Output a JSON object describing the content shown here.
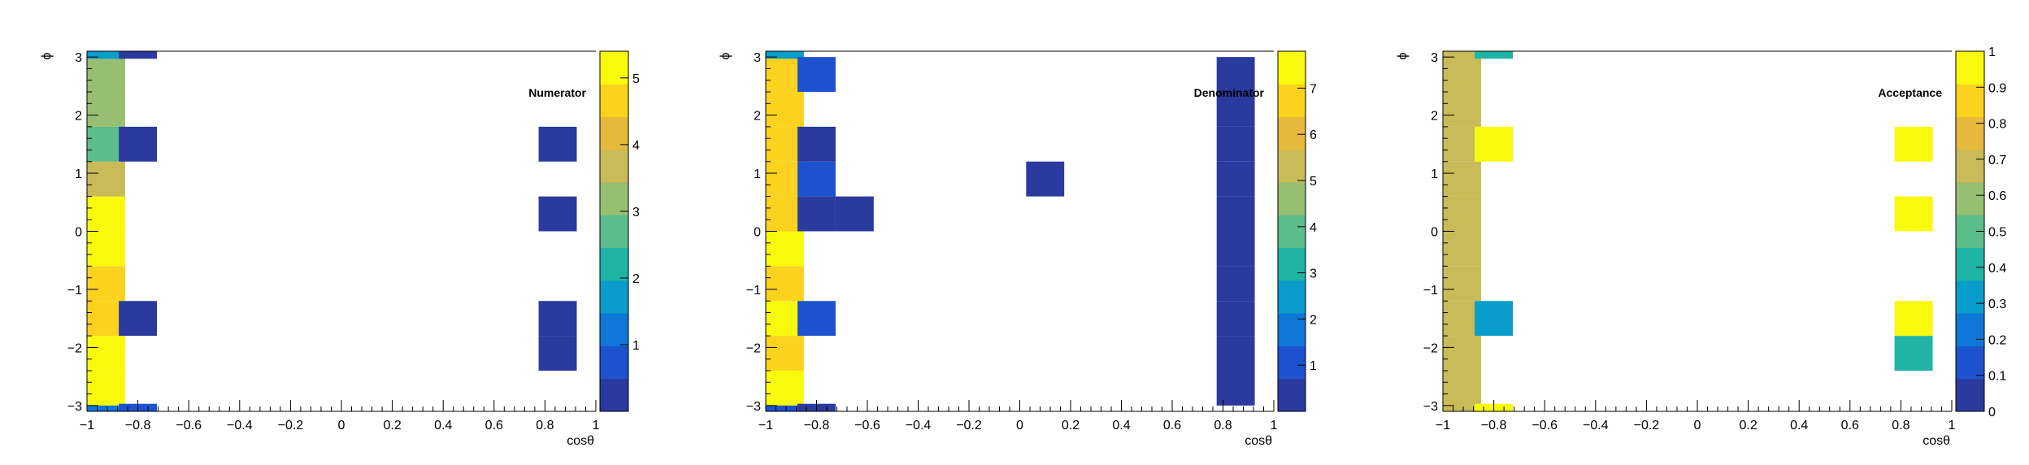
{
  "palette": [
    "#2a3a9e",
    "#1d52cf",
    "#0e77d8",
    "#0a9cca",
    "#1fb4a6",
    "#5cbd8c",
    "#96bf72",
    "#c8bb58",
    "#e6b83c",
    "#fbd21d",
    "#f9f90e"
  ],
  "chart_data": [
    {
      "type": "heatmap",
      "title": "Numerator",
      "xlabel": "cosθ",
      "ylabel": "ϕ",
      "xlim": [
        -1,
        1
      ],
      "ylim": [
        -3.1,
        3.1
      ],
      "xticks": [
        "−1",
        "−0.8",
        "−0.6",
        "−0.4",
        "−0.2",
        "0",
        "0.2",
        "0.4",
        "0.6",
        "0.8",
        "1"
      ],
      "yticks": [
        "−3",
        "−2",
        "−1",
        "0",
        "1",
        "2",
        "3"
      ],
      "zlim": [
        0,
        5.4
      ],
      "zticks": [
        "1",
        "2",
        "3",
        "4",
        "5"
      ],
      "bin_width_x": 0.15,
      "bin_width_y": 0.6,
      "x_bin_edges": [
        -1,
        -0.85,
        -0.7,
        -0.55,
        -0.4,
        -0.25,
        -0.1,
        0.05,
        0.2,
        0.35,
        0.5,
        0.65,
        0.8,
        0.95
      ],
      "y_bin_edges": [
        -3.1,
        -2.5,
        -1.9,
        -1.3,
        -0.7,
        -0.1,
        0.5,
        1.1,
        1.7,
        2.3,
        2.9,
        3.5
      ],
      "cells": [
        {
          "x": -0.925,
          "y": -3.06,
          "z": 1.0
        },
        {
          "x": -0.925,
          "y": -2.7,
          "z": 5.4
        },
        {
          "x": -0.925,
          "y": -2.1,
          "z": 5.0
        },
        {
          "x": -0.925,
          "y": -1.5,
          "z": 4.6
        },
        {
          "x": -0.925,
          "y": -0.9,
          "z": 4.6
        },
        {
          "x": -0.925,
          "y": -0.3,
          "z": 5.2
        },
        {
          "x": -0.925,
          "y": 0.3,
          "z": 5.0
        },
        {
          "x": -0.925,
          "y": 0.9,
          "z": 3.8
        },
        {
          "x": -0.925,
          "y": 1.5,
          "z": 2.6
        },
        {
          "x": -0.925,
          "y": 2.1,
          "z": 3.1
        },
        {
          "x": -0.925,
          "y": 2.7,
          "z": 3.3
        },
        {
          "x": -0.925,
          "y": 3.05,
          "z": 1.5
        },
        {
          "x": -0.8,
          "y": -3.06,
          "z": 0.5
        },
        {
          "x": -0.8,
          "y": -1.5,
          "z": 0.1
        },
        {
          "x": -0.8,
          "y": 1.5,
          "z": 0.1
        },
        {
          "x": -0.8,
          "y": 3.05,
          "z": 0.1
        },
        {
          "x": 0.85,
          "y": -2.1,
          "z": 0.1
        },
        {
          "x": 0.85,
          "y": -1.5,
          "z": 0.1
        },
        {
          "x": 0.85,
          "y": 0.3,
          "z": 0.1
        },
        {
          "x": 0.85,
          "y": 1.5,
          "z": 0.1
        }
      ]
    },
    {
      "type": "heatmap",
      "title": "Denominator",
      "xlabel": "cosθ",
      "ylabel": "ϕ",
      "xlim": [
        -1,
        1
      ],
      "ylim": [
        -3.1,
        3.1
      ],
      "xticks": [
        "−1",
        "−0.8",
        "−0.6",
        "−0.4",
        "−0.2",
        "0",
        "0.2",
        "0.4",
        "0.6",
        "0.8",
        "1"
      ],
      "yticks": [
        "−3",
        "−2",
        "−1",
        "0",
        "1",
        "2",
        "3"
      ],
      "zlim": [
        0,
        7.8
      ],
      "zticks": [
        "1",
        "2",
        "3",
        "4",
        "5",
        "6",
        "7"
      ],
      "bin_width_x": 0.15,
      "bin_width_y": 0.6,
      "cells": [
        {
          "x": -0.925,
          "y": -3.06,
          "z": 1.2
        },
        {
          "x": -0.925,
          "y": -2.7,
          "z": 7.5
        },
        {
          "x": -0.925,
          "y": -2.1,
          "z": 6.6
        },
        {
          "x": -0.925,
          "y": -1.5,
          "z": 7.6
        },
        {
          "x": -0.925,
          "y": -0.9,
          "z": 6.6
        },
        {
          "x": -0.925,
          "y": -0.3,
          "z": 7.8
        },
        {
          "x": -0.925,
          "y": 0.3,
          "z": 6.5
        },
        {
          "x": -0.925,
          "y": 0.9,
          "z": 6.5
        },
        {
          "x": -0.925,
          "y": 1.5,
          "z": 6.6
        },
        {
          "x": -0.925,
          "y": 2.1,
          "z": 6.6
        },
        {
          "x": -0.925,
          "y": 2.7,
          "z": 6.6
        },
        {
          "x": -0.925,
          "y": 3.05,
          "z": 2.6
        },
        {
          "x": -0.8,
          "y": -3.06,
          "z": 0.4
        },
        {
          "x": -0.8,
          "y": -1.5,
          "z": 0.9
        },
        {
          "x": -0.8,
          "y": 0.3,
          "z": 0.2
        },
        {
          "x": -0.8,
          "y": 0.9,
          "z": 0.9
        },
        {
          "x": -0.8,
          "y": 1.5,
          "z": 0.2
        },
        {
          "x": -0.8,
          "y": 2.7,
          "z": 0.9
        },
        {
          "x": -0.65,
          "y": 0.3,
          "z": 0.2
        },
        {
          "x": 0.1,
          "y": 0.9,
          "z": 0.2
        },
        {
          "x": 0.85,
          "y": -2.7,
          "z": 0.2
        },
        {
          "x": 0.85,
          "y": -2.1,
          "z": 0.2
        },
        {
          "x": 0.85,
          "y": -1.5,
          "z": 0.2
        },
        {
          "x": 0.85,
          "y": -0.9,
          "z": 0.2
        },
        {
          "x": 0.85,
          "y": -0.3,
          "z": 0.2
        },
        {
          "x": 0.85,
          "y": 0.3,
          "z": 0.2
        },
        {
          "x": 0.85,
          "y": 0.9,
          "z": 0.2
        },
        {
          "x": 0.85,
          "y": 1.5,
          "z": 0.2
        },
        {
          "x": 0.85,
          "y": 2.1,
          "z": 0.2
        },
        {
          "x": 0.85,
          "y": 2.7,
          "z": 0.2
        }
      ]
    },
    {
      "type": "heatmap",
      "title": "Acceptance",
      "xlabel": "cosθ",
      "ylabel": "ϕ",
      "xlim": [
        -1,
        1
      ],
      "ylim": [
        -3.1,
        3.1
      ],
      "xticks": [
        "−1",
        "−0.8",
        "−0.6",
        "−0.4",
        "−0.2",
        "0",
        "0.2",
        "0.4",
        "0.6",
        "0.8",
        "1"
      ],
      "yticks": [
        "−3",
        "−2",
        "−1",
        "0",
        "1",
        "2",
        "3"
      ],
      "zlim": [
        0,
        1
      ],
      "zticks": [
        "0",
        "0.1",
        "0.2",
        "0.3",
        "0.4",
        "0.5",
        "0.6",
        "0.7",
        "0.8",
        "0.9",
        "1"
      ],
      "bin_width_x": 0.15,
      "bin_width_y": 0.6,
      "cells": [
        {
          "x": -0.925,
          "y": -3.06,
          "z": 0.7
        },
        {
          "x": -0.925,
          "y": -2.7,
          "z": 0.7
        },
        {
          "x": -0.925,
          "y": -2.1,
          "z": 0.7
        },
        {
          "x": -0.925,
          "y": -1.5,
          "z": 0.7
        },
        {
          "x": -0.925,
          "y": -0.9,
          "z": 0.7
        },
        {
          "x": -0.925,
          "y": -0.3,
          "z": 0.7
        },
        {
          "x": -0.925,
          "y": 0.3,
          "z": 0.7
        },
        {
          "x": -0.925,
          "y": 0.9,
          "z": 0.7
        },
        {
          "x": -0.925,
          "y": 1.5,
          "z": 0.7
        },
        {
          "x": -0.925,
          "y": 2.1,
          "z": 0.7
        },
        {
          "x": -0.925,
          "y": 2.7,
          "z": 0.7
        },
        {
          "x": -0.925,
          "y": 3.05,
          "z": 0.7
        },
        {
          "x": -0.8,
          "y": -3.06,
          "z": 0.97
        },
        {
          "x": -0.8,
          "y": -1.5,
          "z": 0.35
        },
        {
          "x": -0.8,
          "y": 1.5,
          "z": 0.97
        },
        {
          "x": -0.8,
          "y": 3.05,
          "z": 0.45
        },
        {
          "x": 0.85,
          "y": -2.1,
          "z": 0.45
        },
        {
          "x": 0.85,
          "y": -1.5,
          "z": 0.97
        },
        {
          "x": 0.85,
          "y": 0.3,
          "z": 0.97
        },
        {
          "x": 0.85,
          "y": 1.5,
          "z": 0.97
        }
      ]
    }
  ]
}
